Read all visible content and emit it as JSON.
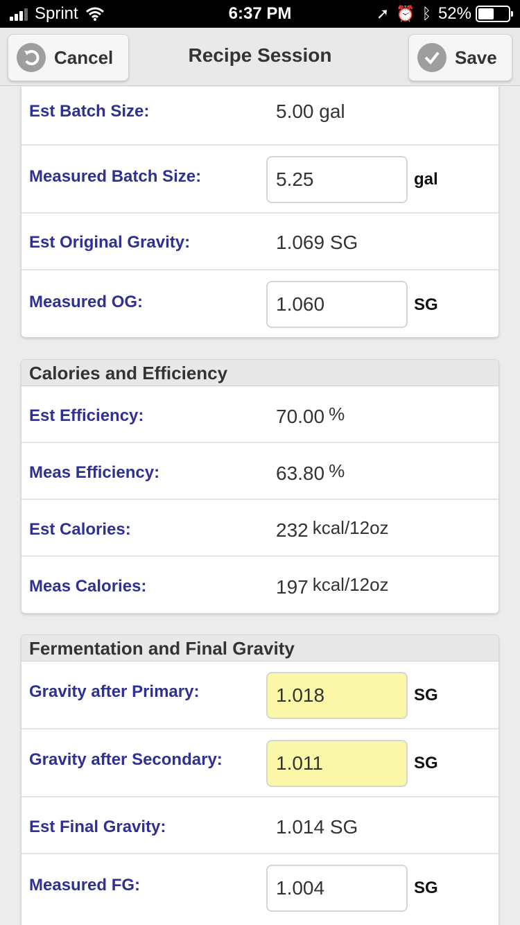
{
  "status": {
    "carrier": "Sprint",
    "time": "6:37 PM",
    "battery": "52%",
    "battery_level": 0.52
  },
  "header": {
    "cancel_label": "Cancel",
    "title": "Recipe Session",
    "save_label": "Save"
  },
  "batch": {
    "rows": [
      {
        "label": "Est Batch Size:",
        "value": "5.00 gal"
      },
      {
        "label": "Measured Batch Size:",
        "input": "5.25",
        "unit": "gal"
      },
      {
        "label": "Est Original Gravity:",
        "value": "1.069 SG"
      },
      {
        "label": "Measured OG:",
        "input": "1.060",
        "unit": "SG"
      }
    ]
  },
  "calories": {
    "title": "Calories and Efficiency",
    "rows": [
      {
        "label": "Est Efficiency:",
        "value": "70.00",
        "unit": "%"
      },
      {
        "label": "Meas Efficiency:",
        "value": "63.80",
        "unit": "%"
      },
      {
        "label": "Est Calories:",
        "value": "232",
        "unit": "kcal/12oz"
      },
      {
        "label": "Meas Calories:",
        "value": "197",
        "unit": "kcal/12oz"
      }
    ]
  },
  "fermentation": {
    "title": "Fermentation and Final Gravity",
    "rows": [
      {
        "label": "Gravity after Primary:",
        "input": "1.018",
        "unit": "SG"
      },
      {
        "label": "Gravity after Secondary:",
        "input": "1.011",
        "unit": "SG"
      },
      {
        "label": "Est Final Gravity:",
        "value": "1.014 SG"
      },
      {
        "label": "Measured FG:",
        "input": "1.004",
        "unit": "SG"
      }
    ]
  },
  "colors": {
    "label": "#2e3192",
    "highlight_input": "#fbf7a8"
  }
}
